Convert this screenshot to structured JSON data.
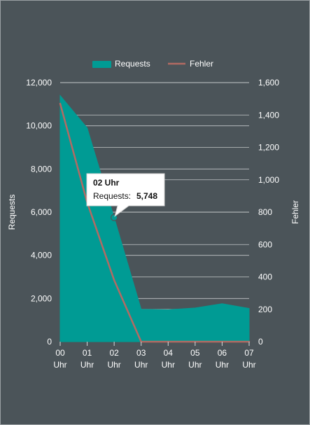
{
  "chart_data": {
    "type": "area",
    "categories": [
      "00 Uhr",
      "01 Uhr",
      "02 Uhr",
      "03 Uhr",
      "04 Uhr",
      "05 Uhr",
      "06 Uhr",
      "07 Uhr"
    ],
    "category_lines": [
      [
        "00",
        "Uhr"
      ],
      [
        "01",
        "Uhr"
      ],
      [
        "02",
        "Uhr"
      ],
      [
        "03",
        "Uhr"
      ],
      [
        "04",
        "Uhr"
      ],
      [
        "05",
        "Uhr"
      ],
      [
        "06",
        "Uhr"
      ],
      [
        "07",
        "Uhr"
      ]
    ],
    "series": [
      {
        "name": "Requests",
        "type": "area",
        "axis": "left",
        "values": [
          11400,
          9900,
          5748,
          1500,
          1480,
          1560,
          1760,
          1540
        ],
        "color": "#009b94"
      },
      {
        "name": "Fehler",
        "type": "line",
        "axis": "right",
        "values": [
          1470,
          860,
          380,
          0,
          0,
          0,
          0,
          0
        ],
        "color": "#b36a63"
      }
    ],
    "ylabel": "Requests",
    "y2label": "Fehler",
    "ylim": [
      0,
      12000
    ],
    "y2lim": [
      0,
      1600
    ],
    "y_ticks": [
      0,
      2000,
      4000,
      6000,
      8000,
      10000,
      12000
    ],
    "y_tick_labels": [
      "0",
      "2,000",
      "4,000",
      "6,000",
      "8,000",
      "10,000",
      "12,000"
    ],
    "y2_ticks": [
      0,
      200,
      400,
      600,
      800,
      1000,
      1200,
      1400,
      1600
    ],
    "y2_tick_labels": [
      "0",
      "200",
      "400",
      "600",
      "800",
      "1,000",
      "1,200",
      "1,400",
      "1,600"
    ],
    "grid": true,
    "legend_position": "top-center",
    "background_color": "#4b5459",
    "grid_color": "#d8dcdd",
    "text_color": "#ffffff",
    "tooltip": {
      "category": "02 Uhr",
      "series_label": "Requests:",
      "value_text": "5,748",
      "category_index": 2
    }
  }
}
